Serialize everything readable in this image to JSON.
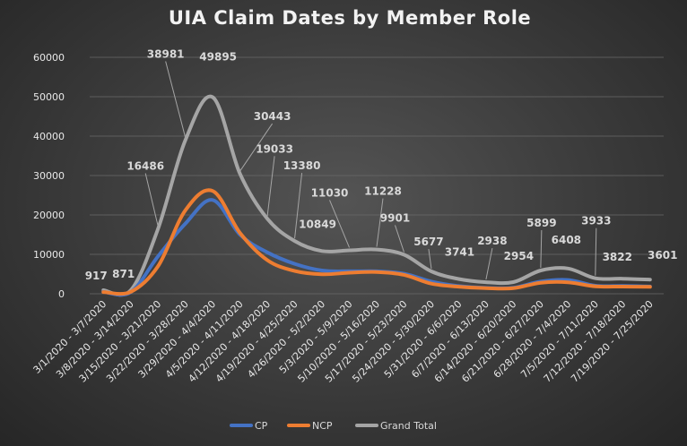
{
  "chart_data": {
    "type": "line",
    "title": "UIA Claim Dates by Member Role",
    "xlabel": "",
    "ylabel": "",
    "ylim": [
      0,
      60000
    ],
    "yticks": [
      0,
      10000,
      20000,
      30000,
      40000,
      50000,
      60000
    ],
    "grid": true,
    "legend_position": "bottom",
    "categories": [
      "3/1/2020 - 3/7/2020",
      "3/8/2020 - 3/14/2020",
      "3/15/2020 - 3/21/2020",
      "3/22/2020 - 3/28/2020",
      "3/29/2020 - 4/4/2020",
      "4/5/2020 - 4/11/2020",
      "4/12/2020 - 4/18/2020",
      "4/19/2020 - 4/25/2020",
      "4/26/2020 - 5/2/2020",
      "5/3/2020 - 5/9/2020",
      "5/10/2020 - 5/16/2020",
      "5/17/2020 - 5/23/2020",
      "5/24/2020 - 5/30/2020",
      "5/31/2020 - 6/6/2020",
      "6/7/2020 - 6/13/2020",
      "6/14/2020 - 6/20/2020",
      "6/21/2020 - 6/27/2020",
      "6/28/2020 - 7/4/2020",
      "7/5/2020 - 7/11/2020",
      "7/12/2020 - 7/18/2020",
      "7/19/2020 - 7/25/2020"
    ],
    "series": [
      {
        "name": "CP",
        "color": "#4472c4",
        "values": [
          480,
          390,
          9500,
          17800,
          23800,
          15000,
          10500,
          7600,
          5900,
          5700,
          5700,
          5100,
          3100,
          1950,
          1500,
          1550,
          3100,
          3500,
          2050,
          2000,
          1850
        ],
        "labels": []
      },
      {
        "name": "NCP",
        "color": "#ed7d31",
        "values": [
          437,
          481,
          6986,
          21181,
          26095,
          15443,
          8533,
          5780,
          4949,
          5330,
          5528,
          4801,
          2577,
          1791,
          1438,
          1404,
          2799,
          2908,
          1883,
          1822,
          1751
        ],
        "labels": []
      },
      {
        "name": "Grand Total",
        "color": "#a5a5a5",
        "values": [
          917,
          871,
          16486,
          38981,
          49895,
          30443,
          19033,
          13380,
          10849,
          11030,
          11228,
          9901,
          5677,
          3741,
          2938,
          2954,
          5899,
          6408,
          3933,
          3822,
          3601
        ],
        "labels": [
          "917",
          "871",
          "16486",
          "38981",
          "49895",
          "30443",
          "19033",
          "13380",
          "10849",
          "11030",
          "11228",
          "9901",
          "5677",
          "3741",
          "2938",
          "2954",
          "5899",
          "6408",
          "3933",
          "3822",
          "3601"
        ]
      }
    ]
  }
}
